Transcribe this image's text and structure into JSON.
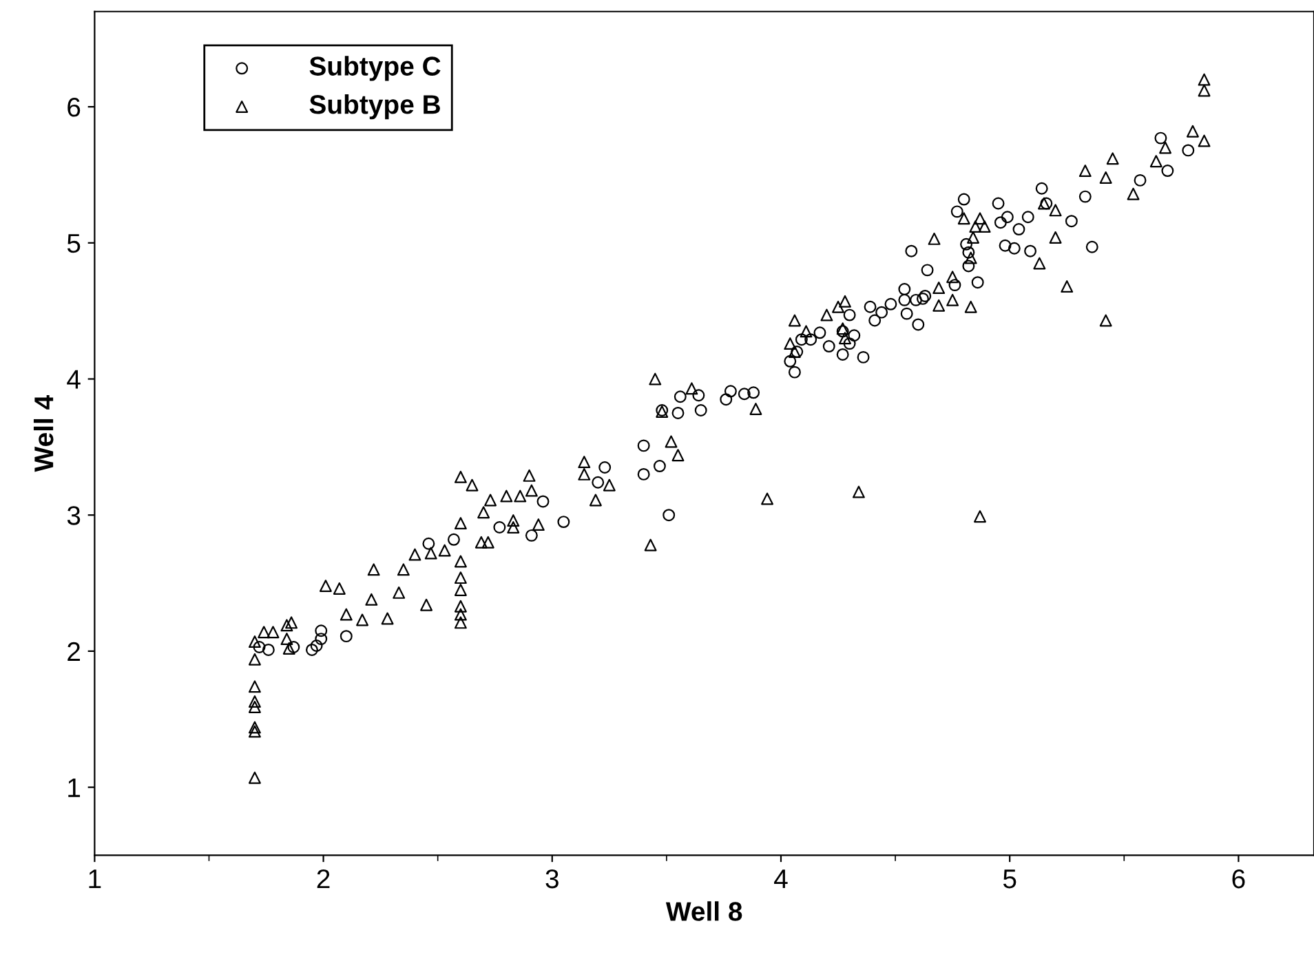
{
  "chart_data": {
    "type": "scatter",
    "xlabel": "Well 8",
    "ylabel": "Well 4",
    "xlim": [
      1,
      6.33
    ],
    "ylim": [
      0.5,
      6.7
    ],
    "xticks": [
      1,
      2,
      3,
      4,
      5,
      6
    ],
    "yticks": [
      1,
      2,
      3,
      4,
      5,
      6
    ],
    "grid": false,
    "legend": "top left",
    "series": [
      {
        "name": "Subtype C",
        "color": "#000000",
        "marker": "circle",
        "x": [
          1.72,
          1.76,
          1.87,
          1.99,
          1.99,
          1.97,
          1.95,
          2.1,
          2.46,
          2.57,
          2.77,
          2.91,
          2.96,
          3.05,
          3.23,
          3.2,
          3.4,
          3.47,
          3.4,
          3.51,
          3.56,
          3.64,
          3.65,
          3.55,
          3.76,
          3.78,
          3.84,
          3.88,
          3.48,
          4.06,
          4.04,
          4.07,
          4.09,
          4.13,
          4.17,
          4.21,
          4.27,
          4.27,
          4.3,
          4.32,
          4.3,
          4.36,
          4.39,
          4.41,
          4.44,
          4.48,
          4.54,
          4.54,
          4.55,
          4.6,
          4.59,
          4.62,
          4.63,
          4.57,
          4.64,
          4.76,
          4.86,
          4.82,
          4.81,
          4.82,
          4.8,
          4.77,
          4.95,
          4.99,
          4.96,
          5.04,
          5.08,
          4.98,
          5.02,
          5.09,
          5.66,
          5.78,
          5.69,
          5.57,
          5.33,
          5.14,
          5.16,
          5.27,
          5.36
        ],
        "values": [
          2.03,
          2.01,
          2.03,
          2.15,
          2.09,
          2.04,
          2.01,
          2.11,
          2.79,
          2.82,
          2.91,
          2.85,
          3.1,
          2.95,
          3.35,
          3.24,
          3.51,
          3.36,
          3.3,
          3.0,
          3.87,
          3.88,
          3.77,
          3.75,
          3.85,
          3.91,
          3.89,
          3.9,
          3.77,
          4.05,
          4.13,
          4.2,
          4.29,
          4.29,
          4.34,
          4.24,
          4.18,
          4.35,
          4.26,
          4.32,
          4.47,
          4.16,
          4.53,
          4.43,
          4.49,
          4.55,
          4.58,
          4.66,
          4.48,
          4.4,
          4.58,
          4.59,
          4.61,
          4.94,
          4.8,
          4.69,
          4.71,
          4.83,
          4.99,
          4.93,
          5.32,
          5.23,
          5.29,
          5.19,
          5.15,
          5.1,
          5.19,
          4.98,
          4.96,
          4.94,
          5.77,
          5.68,
          5.53,
          5.46,
          5.34,
          5.4,
          5.29,
          5.16,
          4.97
        ]
      },
      {
        "name": "Subtype B",
        "color": "#000000",
        "marker": "triangle",
        "x": [
          1.7,
          1.7,
          1.7,
          1.7,
          1.7,
          1.7,
          1.7,
          1.7,
          1.74,
          1.78,
          1.84,
          1.85,
          1.84,
          1.86,
          2.01,
          2.07,
          2.1,
          2.17,
          2.21,
          2.22,
          2.28,
          2.33,
          2.35,
          2.45,
          2.4,
          2.47,
          2.53,
          2.6,
          2.65,
          2.6,
          2.6,
          2.6,
          2.6,
          2.6,
          2.6,
          2.6,
          2.69,
          2.72,
          2.7,
          2.73,
          2.8,
          2.86,
          2.9,
          2.91,
          2.83,
          2.83,
          2.94,
          3.14,
          3.14,
          3.19,
          3.25,
          3.43,
          3.45,
          3.48,
          3.52,
          3.55,
          3.61,
          3.89,
          3.94,
          4.34,
          4.06,
          4.2,
          4.28,
          4.25,
          4.11,
          4.04,
          4.06,
          4.27,
          4.28,
          4.67,
          4.75,
          4.69,
          4.69,
          4.75,
          4.83,
          4.8,
          4.87,
          4.85,
          4.89,
          4.84,
          4.83,
          5.13,
          5.85,
          5.85,
          5.8,
          5.85,
          5.68,
          5.64,
          5.45,
          5.33,
          5.42,
          5.54,
          5.2,
          5.2,
          5.25,
          5.42,
          5.15,
          4.87
        ],
        "values": [
          1.07,
          1.44,
          1.41,
          1.59,
          1.63,
          1.74,
          1.94,
          2.07,
          2.14,
          2.14,
          2.09,
          2.02,
          2.19,
          2.21,
          2.48,
          2.46,
          2.27,
          2.23,
          2.38,
          2.6,
          2.24,
          2.43,
          2.6,
          2.34,
          2.71,
          2.72,
          2.74,
          3.28,
          3.22,
          2.66,
          2.54,
          2.45,
          2.33,
          2.27,
          2.21,
          2.94,
          2.8,
          2.8,
          3.02,
          3.11,
          3.14,
          3.14,
          3.29,
          3.18,
          2.96,
          2.91,
          2.93,
          3.39,
          3.3,
          3.11,
          3.22,
          2.78,
          4.0,
          3.76,
          3.54,
          3.44,
          3.93,
          3.78,
          3.12,
          3.17,
          4.43,
          4.47,
          4.57,
          4.53,
          4.35,
          4.26,
          4.2,
          4.37,
          4.3,
          5.03,
          4.75,
          4.67,
          4.54,
          4.58,
          4.53,
          5.18,
          5.18,
          5.12,
          5.12,
          5.04,
          4.89,
          4.85,
          6.2,
          6.12,
          5.82,
          5.75,
          5.7,
          5.6,
          5.62,
          5.53,
          5.48,
          5.36,
          5.24,
          5.04,
          4.68,
          4.43,
          5.29,
          2.99
        ]
      }
    ]
  }
}
